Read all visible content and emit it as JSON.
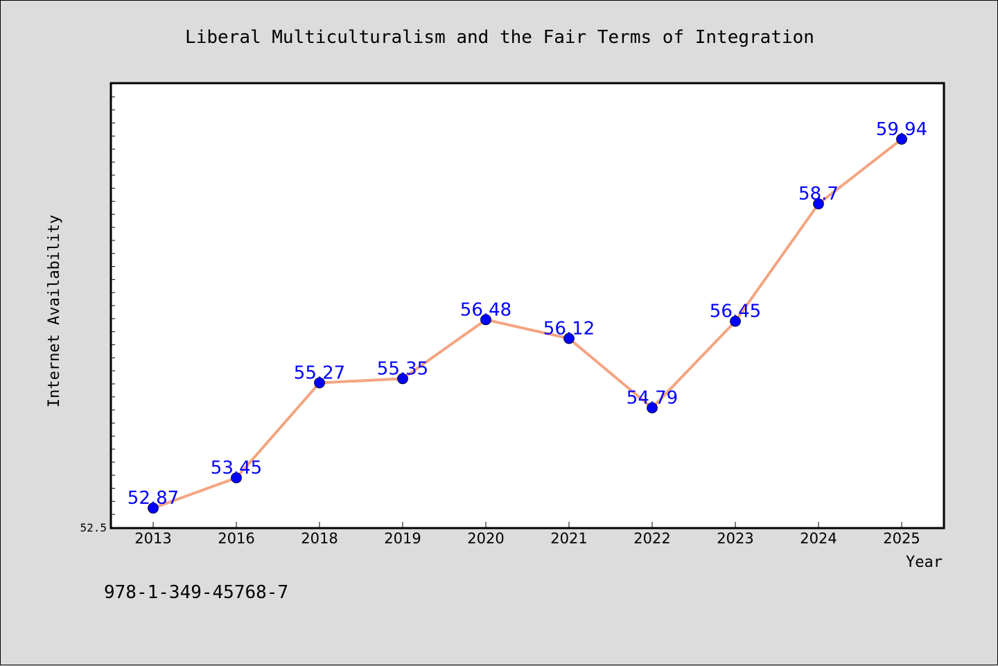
{
  "chart_data": {
    "type": "line",
    "title": "Liberal Multiculturalism and the Fair Terms of Integration",
    "xlabel": "Year",
    "ylabel": "Internet Availability",
    "categories": [
      "2013",
      "2016",
      "2018",
      "2019",
      "2020",
      "2021",
      "2022",
      "2023",
      "2024",
      "2025"
    ],
    "series": [
      {
        "values": [
          52.87,
          53.45,
          55.27,
          55.35,
          56.48,
          56.12,
          54.79,
          56.45,
          58.7,
          59.94
        ],
        "labels": [
          "52.87",
          "53.45",
          "55.27",
          "55.35",
          "56.48",
          "56.12",
          "54.79",
          "56.45",
          "58.7",
          "59.94"
        ]
      }
    ],
    "ylim": [
      52.5,
      61.0
    ],
    "y_tick_labels": [
      "52.5"
    ],
    "grid": false,
    "legend": "none",
    "colors": {
      "line": "#f4a582",
      "marker": "#0000ff",
      "label": "#0000ff",
      "background": "#dcdcdc",
      "plot_background": "#ffffff"
    }
  },
  "footer": {
    "isbn": "978-1-349-45768-7"
  }
}
